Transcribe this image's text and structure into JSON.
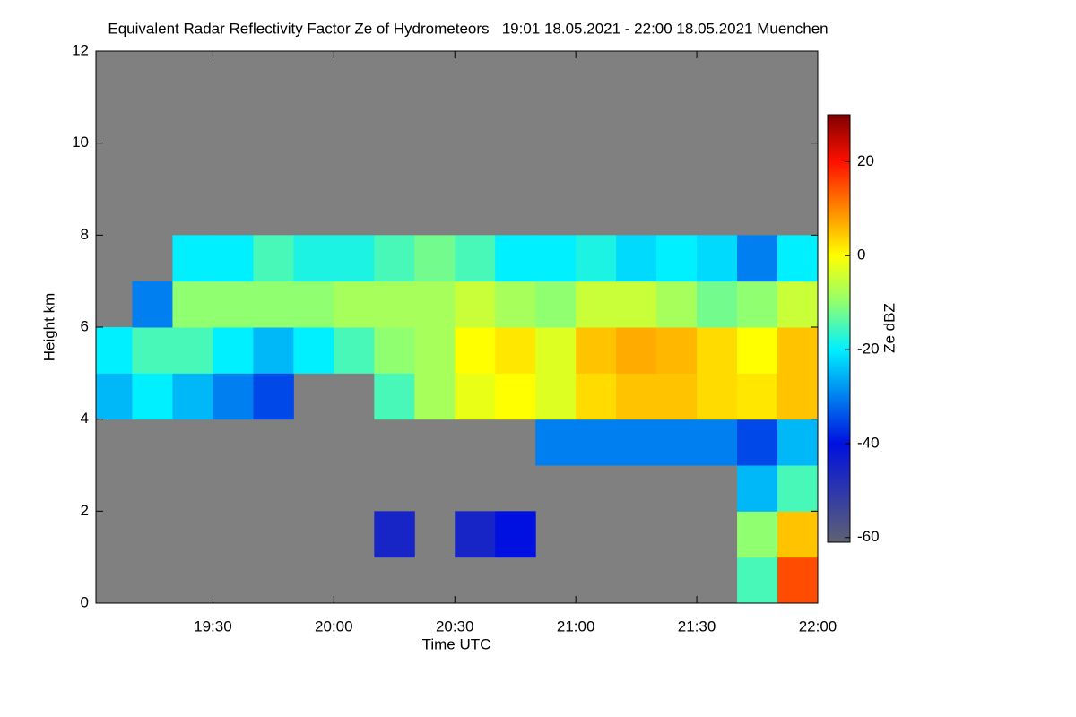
{
  "chart_data": {
    "type": "heatmap",
    "title": "Equivalent Radar Reflectivity Factor Ze of Hydrometeors   19:01 18.05.2021 - 22:00 18.05.2021 Muenchen",
    "x_label": "Time UTC",
    "y_label": "Height km",
    "colorbar_label": "Ze dBZ",
    "xlim": [
      "19:01",
      "22:00"
    ],
    "xticks": [
      "19:30",
      "20:00",
      "20:30",
      "21:00",
      "21:30",
      "22:00"
    ],
    "ylim": [
      0,
      12
    ],
    "yticks": [
      0,
      2,
      4,
      6,
      8,
      10,
      12
    ],
    "x_edges": [
      "19:01",
      "19:10",
      "19:20",
      "19:30",
      "19:40",
      "19:50",
      "20:00",
      "20:10",
      "20:20",
      "20:30",
      "20:40",
      "20:50",
      "21:00",
      "21:10",
      "21:20",
      "21:30",
      "21:40",
      "21:50",
      "22:00"
    ],
    "y_edges": [
      0,
      1,
      2,
      3,
      4,
      5,
      6,
      7,
      8,
      9,
      10,
      11,
      12
    ],
    "z": [
      [
        null,
        null,
        null,
        null,
        null,
        null,
        null,
        null,
        null,
        null,
        null,
        null,
        null,
        null,
        null,
        null,
        -15,
        15
      ],
      [
        null,
        null,
        null,
        null,
        null,
        null,
        null,
        -45,
        null,
        -45,
        -40,
        null,
        null,
        null,
        null,
        null,
        -10,
        5
      ],
      [
        null,
        null,
        null,
        null,
        null,
        null,
        null,
        null,
        null,
        null,
        null,
        null,
        null,
        null,
        null,
        null,
        -25,
        -15
      ],
      [
        null,
        null,
        null,
        null,
        null,
        null,
        null,
        null,
        null,
        null,
        null,
        -30,
        -30,
        -30,
        -30,
        -30,
        -35,
        -25
      ],
      [
        -25,
        -20,
        -25,
        -30,
        -35,
        null,
        null,
        -15,
        -8,
        -2,
        0,
        -3,
        3,
        5,
        5,
        3,
        2,
        5
      ],
      [
        -20,
        -15,
        -15,
        -20,
        -25,
        -20,
        -15,
        -10,
        -8,
        0,
        2,
        -3,
        5,
        7,
        6,
        3,
        0,
        5
      ],
      [
        null,
        -30,
        -10,
        -10,
        -10,
        -10,
        -8,
        -8,
        -8,
        -5,
        -8,
        -10,
        -5,
        -5,
        -8,
        -12,
        -10,
        -5
      ],
      [
        null,
        null,
        -20,
        -20,
        -15,
        -18,
        -18,
        -15,
        -12,
        -15,
        -20,
        -20,
        -18,
        -22,
        -20,
        -22,
        -30,
        -20
      ],
      [
        null,
        null,
        null,
        null,
        null,
        null,
        null,
        null,
        null,
        null,
        null,
        null,
        null,
        null,
        null,
        null,
        null,
        null
      ],
      [
        null,
        null,
        null,
        null,
        null,
        null,
        null,
        null,
        null,
        null,
        null,
        null,
        null,
        null,
        null,
        null,
        null,
        null
      ],
      [
        null,
        null,
        null,
        null,
        null,
        null,
        null,
        null,
        null,
        null,
        null,
        null,
        null,
        null,
        null,
        null,
        null,
        null
      ],
      [
        null,
        null,
        null,
        null,
        null,
        null,
        null,
        null,
        null,
        null,
        null,
        null,
        null,
        null,
        null,
        null,
        null,
        null
      ]
    ],
    "zlim": [
      -61,
      30
    ],
    "zticks": [
      -60,
      -40,
      -20,
      0,
      20
    ],
    "colormap": [
      {
        "value": -61,
        "color": "#5f6272"
      },
      {
        "value": -40,
        "color": "#0010e0"
      },
      {
        "value": -20,
        "color": "#00f0ff"
      },
      {
        "value": -10,
        "color": "#90ff70"
      },
      {
        "value": 0,
        "color": "#ffff00"
      },
      {
        "value": 20,
        "color": "#ff1000"
      },
      {
        "value": 30,
        "color": "#800000"
      }
    ],
    "background": "#808080"
  }
}
